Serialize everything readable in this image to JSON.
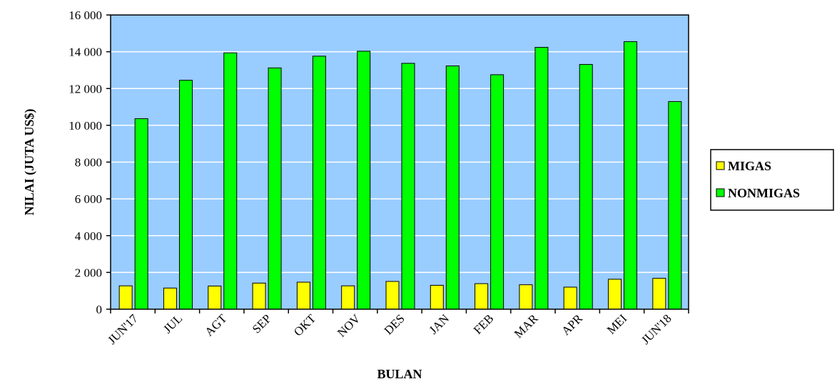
{
  "chart_data": {
    "type": "bar",
    "categories": [
      "JUN'17",
      "JUL",
      "AGT",
      "SEP",
      "OKT",
      "NOV",
      "DES",
      "JAN",
      "FEB",
      "MAR",
      "APR",
      "MEI",
      "JUN'18"
    ],
    "series": [
      {
        "name": "MIGAS",
        "color": "#ffff00",
        "values": [
          1270,
          1150,
          1260,
          1420,
          1470,
          1270,
          1510,
          1300,
          1390,
          1330,
          1200,
          1630,
          1680
        ]
      },
      {
        "name": "NONMIGAS",
        "color": "#00ff00",
        "values": [
          10360,
          12450,
          13940,
          13120,
          13760,
          14030,
          13370,
          13230,
          12750,
          14240,
          13310,
          14550,
          11290
        ]
      }
    ],
    "xlabel": "BULAN",
    "ylabel": "NILAI (JUTA US$)",
    "ylim": [
      0,
      16000
    ],
    "yticks": [
      0,
      2000,
      4000,
      6000,
      8000,
      10000,
      12000,
      14000,
      16000
    ],
    "ytick_labels": [
      "0",
      "2 000",
      "4 000",
      "6 000",
      "8 000",
      "10 000",
      "12 000",
      "14 000",
      "16 000"
    ],
    "plot_background": "#99ccff",
    "grid": true,
    "legend_position": "right"
  }
}
